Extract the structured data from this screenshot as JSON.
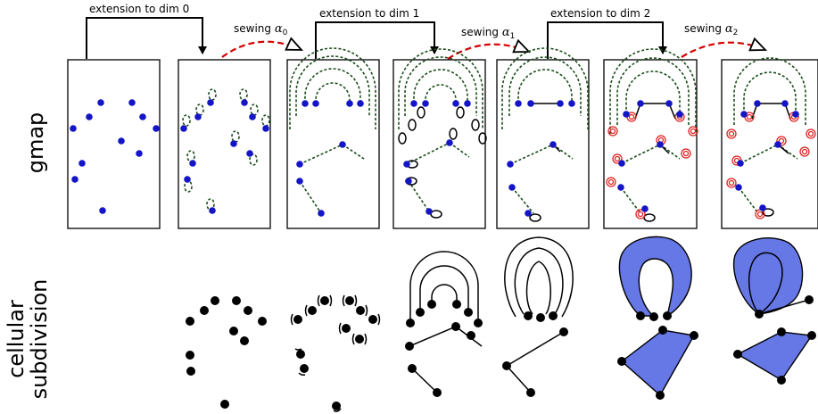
{
  "arrows": {
    "ext0": "extension to dim 0",
    "ext1": "extension to dim 1",
    "ext2": "extension to dim 2",
    "sew0": "sewing",
    "sew1": "sewing",
    "sew2": "sewing",
    "sew0_sym": "α",
    "sew0_sub": "0",
    "sew1_sym": "α",
    "sew1_sub": "1",
    "sew2_sym": "α",
    "sew2_sub": "2"
  },
  "rows": {
    "top": "gmap",
    "bottom_line1": "cellular",
    "bottom_line2": "subdivision"
  },
  "colors": {
    "vertex_gmap": "#1515c8",
    "vertex_cell": "#000000",
    "sewing_arrow": "#d40000",
    "dart_dashed": "#1a4d1a",
    "face_fill": "#6677e6",
    "fixed_point_ring": "#e02020"
  }
}
